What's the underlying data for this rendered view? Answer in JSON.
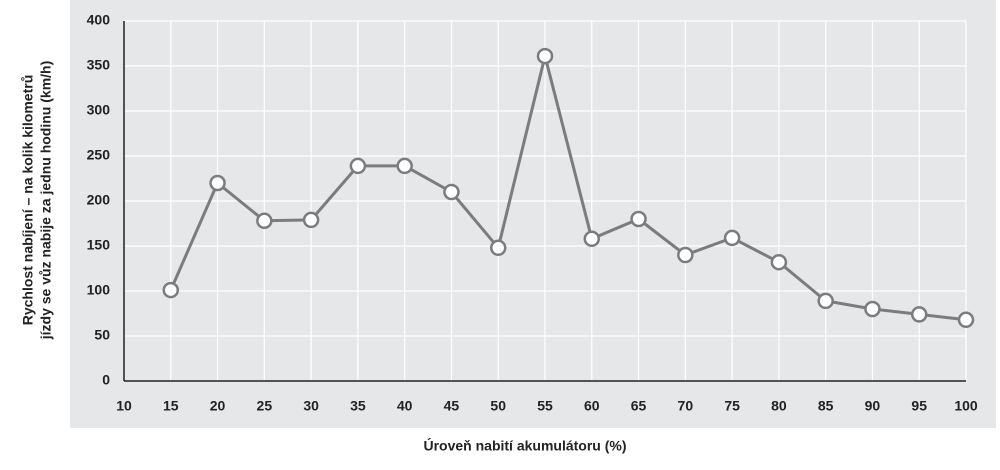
{
  "chart_data": {
    "type": "line",
    "y_label": [
      "Rychlost nabíjení – na kolik kilometrů",
      "jízdy se vůz nabije za jednu hodinu (km/h)"
    ],
    "x_label": "Úroveň nabití akumulátoru (%)",
    "x": [
      15,
      20,
      25,
      30,
      35,
      40,
      45,
      50,
      55,
      60,
      65,
      70,
      75,
      80,
      85,
      90,
      95,
      100
    ],
    "values": [
      101,
      220,
      178,
      179,
      239,
      239,
      210,
      148,
      361,
      158,
      180,
      140,
      159,
      132,
      89,
      80,
      74,
      68
    ],
    "color": "#7b7c7e",
    "xlim": [
      10,
      100
    ],
    "xticks": [
      10,
      15,
      20,
      25,
      30,
      35,
      40,
      45,
      50,
      55,
      60,
      65,
      70,
      75,
      80,
      85,
      90,
      95,
      100
    ],
    "ylim": [
      0,
      400
    ],
    "yticks": [
      0,
      50,
      100,
      150,
      200,
      250,
      300,
      350,
      400
    ],
    "grid": true
  }
}
